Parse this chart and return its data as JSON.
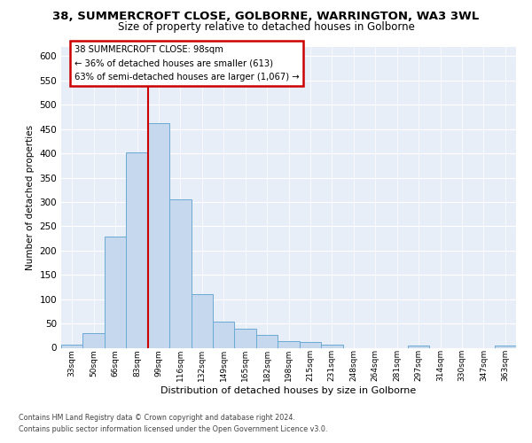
{
  "title_line1": "38, SUMMERCROFT CLOSE, GOLBORNE, WARRINGTON, WA3 3WL",
  "title_line2": "Size of property relative to detached houses in Golborne",
  "xlabel": "Distribution of detached houses by size in Golborne",
  "ylabel": "Number of detached properties",
  "categories": [
    "33sqm",
    "50sqm",
    "66sqm",
    "83sqm",
    "99sqm",
    "116sqm",
    "132sqm",
    "149sqm",
    "165sqm",
    "182sqm",
    "198sqm",
    "215sqm",
    "231sqm",
    "248sqm",
    "264sqm",
    "281sqm",
    "297sqm",
    "314sqm",
    "330sqm",
    "347sqm",
    "363sqm"
  ],
  "values": [
    6,
    30,
    228,
    403,
    463,
    306,
    110,
    54,
    39,
    27,
    14,
    12,
    6,
    0,
    0,
    0,
    5,
    0,
    0,
    0,
    4
  ],
  "bar_color": "#c5d8ee",
  "bar_edge_color": "#6aaad4",
  "vline_index": 4,
  "vline_color": "#cc0000",
  "ann_line1": "38 SUMMERCROFT CLOSE: 98sqm",
  "ann_line2": "← 36% of detached houses are smaller (613)",
  "ann_line3": "63% of semi-detached houses are larger (1,067) →",
  "ann_edge_color": "#cc0000",
  "ylim": [
    0,
    620
  ],
  "yticks": [
    0,
    50,
    100,
    150,
    200,
    250,
    300,
    350,
    400,
    450,
    500,
    550,
    600
  ],
  "bg_color": "#e8eef8",
  "grid_color": "#ffffff",
  "footer1": "Contains HM Land Registry data © Crown copyright and database right 2024.",
  "footer2": "Contains public sector information licensed under the Open Government Licence v3.0."
}
